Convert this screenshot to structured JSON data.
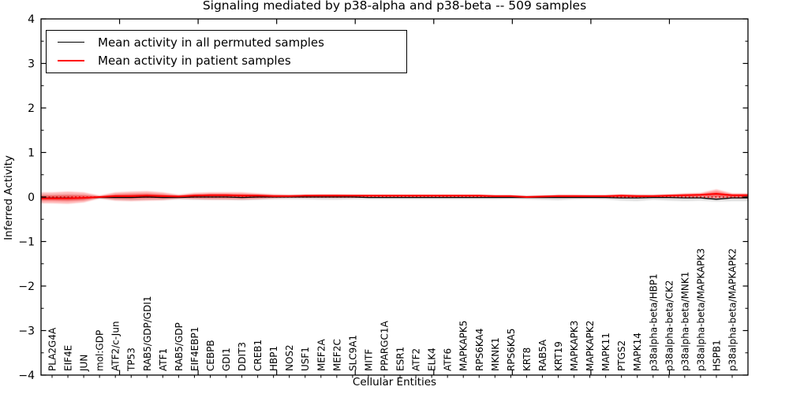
{
  "figure": {
    "background": "#ffffff",
    "frame_color": "#000000"
  },
  "chart_data": {
    "type": "line",
    "title": "Signaling mediated by p38-alpha and p38-beta -- 509 samples",
    "xlabel": "Cellular Entities",
    "ylabel": "Inferred Activity",
    "ylim": [
      -4,
      4
    ],
    "yticks": [
      -4,
      -3,
      -2,
      -1,
      0,
      1,
      2,
      3,
      4
    ],
    "y_minor_step": 0.5,
    "x_axis_units_range": [
      0,
      45
    ],
    "x_major_ticks_units": [
      5,
      10,
      15,
      20,
      25,
      30,
      35,
      40
    ],
    "grid": "off",
    "legend_position": "upper left",
    "zero_line": {
      "value": 0,
      "color": "#dd0000",
      "style": "dotted"
    },
    "categories": [
      "PLA2G4A",
      "EIF4E",
      "JUN",
      "mol:GDP",
      "ATF2/c-Jun",
      "TP53",
      "RAB5/GDP/GDI1",
      "ATF1",
      "RAB5/GDP",
      "EIF4EBP1",
      "CEBPB",
      "GDI1",
      "DDIT3",
      "CREB1",
      "HBP1",
      "NOS2",
      "USF1",
      "MEF2A",
      "MEF2C",
      "SLC9A1",
      "MITF",
      "PPARGC1A",
      "ESR1",
      "ATF2",
      "ELK4",
      "ATF6",
      "MAPKAPK5",
      "RPS6KA4",
      "MKNK1",
      "RPS6KA5",
      "KRT8",
      "RAB5A",
      "KRT19",
      "MAPKAPK3",
      "MAPKAPK2",
      "MAPK11",
      "PTGS2",
      "MAPK14",
      "p38alpha-beta/HBP1",
      "p38alpha-beta/CK2",
      "p38alpha-beta/MNK1",
      "p38alpha-beta/MAPKAPK3",
      "HSPB1",
      "p38alpha-beta/MAPKAPK2"
    ],
    "series": [
      {
        "name": "Mean activity in all permuted samples",
        "color": "#000000",
        "values": [
          -0.02,
          -0.02,
          -0.02,
          -0.01,
          -0.01,
          -0.01,
          0.0,
          -0.01,
          -0.01,
          0.0,
          0.0,
          0.0,
          -0.01,
          0.0,
          0.0,
          0.0,
          0.0,
          0.0,
          0.0,
          0.0,
          -0.01,
          -0.01,
          -0.01,
          -0.01,
          -0.01,
          -0.01,
          -0.01,
          -0.01,
          -0.01,
          -0.01,
          -0.01,
          -0.01,
          -0.01,
          -0.01,
          -0.01,
          -0.01,
          -0.02,
          -0.02,
          -0.01,
          -0.01,
          -0.02,
          -0.02,
          -0.05,
          -0.02
        ]
      },
      {
        "name": "Mean activity in patient samples",
        "color": "#ff0000",
        "values": [
          -0.03,
          -0.03,
          -0.02,
          0.0,
          0.02,
          0.02,
          0.03,
          0.02,
          0.01,
          0.03,
          0.04,
          0.04,
          0.03,
          0.03,
          0.02,
          0.02,
          0.03,
          0.03,
          0.03,
          0.03,
          0.03,
          0.03,
          0.03,
          0.03,
          0.03,
          0.03,
          0.03,
          0.03,
          0.02,
          0.02,
          0.0,
          0.01,
          0.02,
          0.02,
          0.02,
          0.02,
          0.03,
          0.02,
          0.02,
          0.03,
          0.04,
          0.05,
          0.07,
          0.04
        ]
      }
    ],
    "bands": [
      {
        "name": "permuted-samples-range",
        "color": "rgba(0,0,0,0.13)",
        "upper": [
          0.05,
          0.06,
          0.05,
          0.02,
          0.05,
          0.06,
          0.06,
          0.05,
          0.04,
          0.05,
          0.05,
          0.05,
          0.05,
          0.05,
          0.04,
          0.04,
          0.04,
          0.04,
          0.04,
          0.04,
          0.03,
          0.03,
          0.03,
          0.03,
          0.03,
          0.03,
          0.03,
          0.03,
          0.03,
          0.03,
          0.03,
          0.03,
          0.04,
          0.03,
          0.03,
          0.03,
          0.04,
          0.05,
          0.04,
          0.05,
          0.06,
          0.05,
          0.04,
          0.05
        ],
        "lower": [
          -0.07,
          -0.08,
          -0.07,
          -0.03,
          -0.06,
          -0.07,
          -0.06,
          -0.06,
          -0.05,
          -0.06,
          -0.06,
          -0.06,
          -0.07,
          -0.06,
          -0.05,
          -0.05,
          -0.05,
          -0.06,
          -0.06,
          -0.05,
          -0.05,
          -0.05,
          -0.05,
          -0.05,
          -0.05,
          -0.05,
          -0.05,
          -0.05,
          -0.05,
          -0.04,
          -0.05,
          -0.06,
          -0.07,
          -0.05,
          -0.04,
          -0.05,
          -0.08,
          -0.09,
          -0.06,
          -0.08,
          -0.09,
          -0.08,
          -0.1,
          -0.09
        ]
      },
      {
        "name": "patient-samples-range-outer",
        "color": "rgba(255,0,0,0.28)",
        "upper": [
          0.1,
          0.12,
          0.1,
          0.03,
          0.1,
          0.12,
          0.13,
          0.1,
          0.05,
          0.09,
          0.1,
          0.1,
          0.1,
          0.08,
          0.06,
          0.05,
          0.05,
          0.06,
          0.06,
          0.05,
          0.05,
          0.05,
          0.05,
          0.05,
          0.05,
          0.05,
          0.05,
          0.05,
          0.04,
          0.04,
          0.02,
          0.03,
          0.05,
          0.05,
          0.04,
          0.04,
          0.06,
          0.05,
          0.05,
          0.06,
          0.08,
          0.09,
          0.17,
          0.08
        ],
        "lower": [
          -0.14,
          -0.15,
          -0.12,
          -0.03,
          -0.08,
          -0.09,
          -0.08,
          -0.07,
          -0.04,
          -0.05,
          -0.06,
          -0.06,
          -0.06,
          -0.05,
          -0.03,
          -0.02,
          -0.02,
          -0.02,
          -0.02,
          -0.02,
          -0.01,
          -0.01,
          -0.01,
          -0.01,
          -0.01,
          -0.01,
          -0.01,
          -0.01,
          -0.01,
          -0.01,
          -0.02,
          -0.02,
          -0.02,
          -0.02,
          -0.02,
          -0.02,
          -0.02,
          -0.02,
          -0.02,
          -0.02,
          -0.02,
          -0.01,
          -0.05,
          -0.03
        ]
      },
      {
        "name": "patient-samples-range-inner",
        "color": "rgba(255,0,0,0.38)",
        "upper": [
          0.035,
          0.045,
          0.04,
          0.015,
          0.06,
          0.07,
          0.08,
          0.06,
          0.03,
          0.06,
          0.07,
          0.07,
          0.065,
          0.055,
          0.04,
          0.035,
          0.04,
          0.045,
          0.045,
          0.04,
          0.04,
          0.04,
          0.04,
          0.04,
          0.04,
          0.04,
          0.04,
          0.04,
          0.03,
          0.03,
          0.01,
          0.02,
          0.035,
          0.035,
          0.03,
          0.03,
          0.045,
          0.035,
          0.035,
          0.045,
          0.06,
          0.07,
          0.12,
          0.06
        ],
        "lower": [
          -0.085,
          -0.09,
          -0.07,
          -0.015,
          -0.03,
          -0.035,
          -0.025,
          -0.025,
          -0.015,
          -0.01,
          -0.01,
          -0.01,
          -0.015,
          -0.01,
          -0.005,
          0.0,
          0.005,
          0.005,
          0.005,
          0.005,
          0.01,
          0.01,
          0.01,
          0.01,
          0.01,
          0.01,
          0.01,
          0.01,
          0.005,
          0.005,
          -0.01,
          -0.005,
          0.0,
          0.0,
          0.0,
          0.0,
          0.005,
          0.0,
          0.0,
          0.005,
          0.01,
          0.02,
          0.01,
          0.005
        ]
      }
    ]
  }
}
